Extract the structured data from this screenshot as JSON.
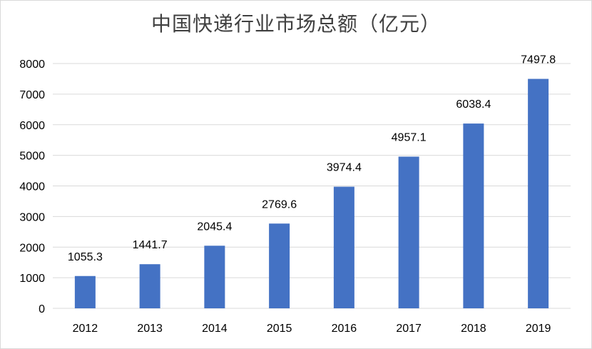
{
  "chart_data": {
    "type": "bar",
    "title": "中国快递行业市场总额（亿元）",
    "categories": [
      "2012",
      "2013",
      "2014",
      "2015",
      "2016",
      "2017",
      "2018",
      "2019"
    ],
    "values": [
      1055.3,
      1441.7,
      2045.4,
      2769.6,
      3974.4,
      4957.1,
      6038.4,
      7497.8
    ],
    "value_labels": [
      "1055.3",
      "1441.7",
      "2045.4",
      "2769.6",
      "3974.4",
      "4957.1",
      "6038.4",
      "7497.8"
    ],
    "y_ticks": [
      "0",
      "1000",
      "2000",
      "3000",
      "4000",
      "5000",
      "6000",
      "7000",
      "8000"
    ],
    "ylim": [
      0,
      8000
    ],
    "xlabel": "",
    "ylabel": "",
    "grid": true,
    "legend": "none",
    "bar_color": "#4472c4",
    "grid_color": "#d9d9d9"
  }
}
